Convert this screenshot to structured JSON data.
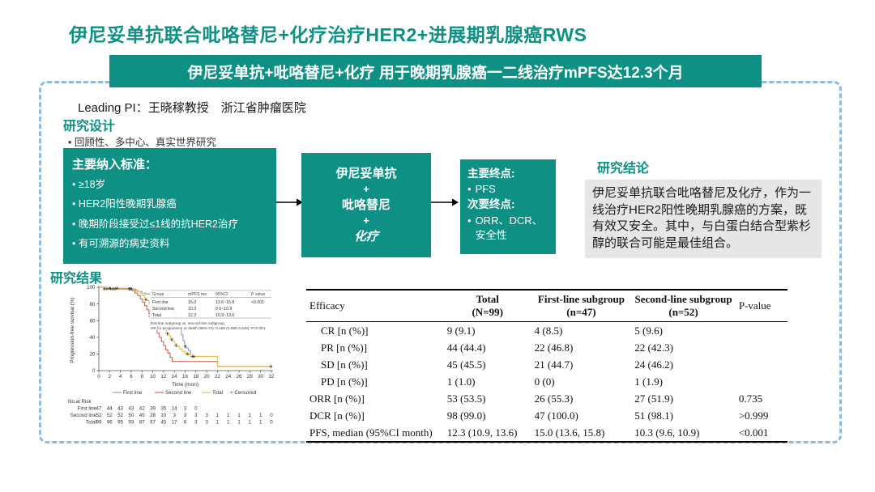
{
  "page": {
    "title": "伊尼妥单抗联合吡咯替尼+化疗治疗HER2+进展期乳腺癌RWS",
    "banner": "伊尼妥单抗+吡咯替尼+化疗 用于晚期乳腺癌一二线治疗mPFS达12.3个月",
    "leading_pi": "Leading PI：王晓稼教授　浙江省肿瘤医院"
  },
  "colors": {
    "teal": "#0e9184",
    "frame_dash_blue": "#8fbbdf",
    "conclusion_gray": "#e7e6e6",
    "km_first_line_blue": "#86a5d8",
    "km_second_line_red": "#d7695b",
    "km_total_yellow": "#e9c25e"
  },
  "design": {
    "heading": "研究设计",
    "bullet": "•   回顾性、多中心、真实世界研究",
    "inclusion_box": {
      "title": "主要纳入标准：",
      "items": [
        "• ≥18岁",
        "• HER2阳性晚期乳腺癌",
        "• 晚期阶段接受过≤1线的抗HER2治疗",
        "• 有可溯源的病史资料"
      ]
    },
    "treatment_box": {
      "lines": [
        "伊尼妥单抗",
        "+",
        "吡咯替尼",
        "+",
        "化疗"
      ]
    },
    "endpoints_box": {
      "primary_label": "主要终点:",
      "primary_item": "PFS",
      "secondary_label": "次要终点:",
      "secondary_item": "ORR、DCR、安全性"
    }
  },
  "conclusion": {
    "heading": "研究结论",
    "text": "伊尼妥单抗联合吡咯替尼及化疗，作为一线治疗HER2阳性晚期乳腺癌的方案，既有效又安全。其中，与白蛋白结合型紫杉醇的联合可能是最佳组合。"
  },
  "results": {
    "heading": "研究结果"
  },
  "chart_data": {
    "type": "line",
    "subtype": "kaplan-meier",
    "xlabel": "Time (mon)",
    "ylabel": "Progression-free survival (%)",
    "xlim": [
      0,
      32
    ],
    "ylim": [
      0,
      100
    ],
    "xticks": [
      0,
      2,
      4,
      6,
      8,
      10,
      12,
      14,
      16,
      18,
      20,
      22,
      24,
      26,
      28,
      30,
      32
    ],
    "yticks": [
      0,
      20,
      40,
      60,
      80,
      100
    ],
    "legend": [
      "First line",
      "Second line",
      "Total",
      "Censored"
    ],
    "series": [
      {
        "name": "First line",
        "color": "#86a5d8",
        "steps": [
          [
            0,
            100
          ],
          [
            1,
            98
          ],
          [
            6.3,
            98
          ],
          [
            6.8,
            96
          ],
          [
            7.3,
            95
          ],
          [
            8,
            93
          ],
          [
            8.6,
            92
          ],
          [
            9.6,
            90
          ],
          [
            10.4,
            88
          ],
          [
            11.2,
            87
          ],
          [
            12,
            85
          ],
          [
            12.6,
            83
          ],
          [
            13,
            80
          ],
          [
            13.4,
            76
          ],
          [
            13.8,
            71
          ],
          [
            14.2,
            65
          ],
          [
            14.6,
            58
          ],
          [
            15,
            50
          ],
          [
            15.3,
            43
          ],
          [
            15.6,
            36
          ],
          [
            15.9,
            30
          ],
          [
            16.2,
            27
          ],
          [
            16.6,
            24
          ],
          [
            17,
            17
          ],
          [
            18.2,
            17
          ]
        ],
        "censors": [
          [
            1.5,
            98
          ],
          [
            2.2,
            98
          ],
          [
            3,
            98
          ],
          [
            5.6,
            98
          ],
          [
            5.9,
            98
          ],
          [
            9.8,
            90
          ],
          [
            10.8,
            88
          ],
          [
            11.5,
            87
          ],
          [
            12.2,
            85
          ],
          [
            13.9,
            71
          ],
          [
            14.4,
            62
          ],
          [
            16,
            29
          ],
          [
            17.6,
            17
          ]
        ]
      },
      {
        "name": "Second line",
        "color": "#d7695b",
        "steps": [
          [
            0,
            100
          ],
          [
            1.2,
            98
          ],
          [
            5.6,
            98
          ],
          [
            6.2,
            96
          ],
          [
            6.7,
            93
          ],
          [
            7.2,
            90
          ],
          [
            7.7,
            86
          ],
          [
            8.1,
            82
          ],
          [
            8.5,
            78
          ],
          [
            8.9,
            73
          ],
          [
            9.3,
            68
          ],
          [
            9.7,
            62
          ],
          [
            10.1,
            56
          ],
          [
            10.4,
            50
          ],
          [
            10.8,
            45
          ],
          [
            11.2,
            40
          ],
          [
            11.6,
            35
          ],
          [
            12,
            30
          ],
          [
            12.4,
            25
          ],
          [
            12.8,
            21
          ],
          [
            13.2,
            16
          ],
          [
            13.6,
            11
          ],
          [
            21.8,
            11
          ],
          [
            22,
            5
          ],
          [
            31.9,
            5
          ]
        ],
        "censors": [
          [
            1,
            98
          ],
          [
            2.6,
            98
          ],
          [
            5.7,
            98
          ],
          [
            9.5,
            65
          ],
          [
            31.9,
            5
          ]
        ]
      },
      {
        "name": "Total",
        "color": "#e9c25e",
        "steps": [
          [
            0,
            100
          ],
          [
            1,
            99
          ],
          [
            6,
            98
          ],
          [
            6.6,
            97
          ],
          [
            7.2,
            95
          ],
          [
            7.7,
            93
          ],
          [
            8.1,
            90
          ],
          [
            8.5,
            87
          ],
          [
            8.9,
            84
          ],
          [
            9.3,
            80
          ],
          [
            9.7,
            76
          ],
          [
            10.1,
            72
          ],
          [
            10.5,
            67
          ],
          [
            10.9,
            63
          ],
          [
            11.3,
            59
          ],
          [
            11.7,
            55
          ],
          [
            12.1,
            50
          ],
          [
            12.5,
            46
          ],
          [
            12.9,
            42
          ],
          [
            13.3,
            39
          ],
          [
            13.7,
            35
          ],
          [
            14.1,
            32
          ],
          [
            14.5,
            29
          ],
          [
            15,
            26
          ],
          [
            15.5,
            23
          ],
          [
            16,
            21
          ],
          [
            16.6,
            19
          ],
          [
            17,
            17
          ],
          [
            21.8,
            17
          ],
          [
            22,
            5
          ],
          [
            31.9,
            5
          ]
        ],
        "censors": [
          [
            2,
            99
          ],
          [
            3.4,
            99
          ],
          [
            6.1,
            98
          ],
          [
            8.7,
            85
          ],
          [
            9.9,
            74
          ],
          [
            10.7,
            65
          ],
          [
            11.5,
            57
          ],
          [
            12.7,
            44
          ],
          [
            13.5,
            37
          ],
          [
            14.3,
            30
          ],
          [
            16.4,
            20
          ],
          [
            17.4,
            17
          ],
          [
            31.9,
            5
          ]
        ]
      }
    ],
    "stats_table": {
      "columns": [
        "Group",
        "mPFS mo",
        "95%CI",
        "P value"
      ],
      "rows": [
        [
          "First line",
          "15.0",
          "13.6~15.8",
          "<0.001"
        ],
        [
          "Second line",
          "10.3",
          "9.6~10.9",
          ""
        ],
        [
          "Total",
          "12.3",
          "10.9~13.6",
          ""
        ]
      ]
    },
    "hr_note_line1": "first-line subgroup vs. second-line subgroup,",
    "hr_note_line2": "HR for progression or death (95% CI): 0.168 (0.086-0.326); P<0.001",
    "risk_table": {
      "label": "No.at Risk",
      "rows": [
        {
          "name": "First line",
          "values": [
            47,
            44,
            43,
            43,
            42,
            39,
            35,
            14,
            3,
            0
          ]
        },
        {
          "name": "Second line",
          "values": [
            52,
            52,
            52,
            50,
            45,
            28,
            10,
            3,
            3,
            3,
            3,
            1,
            1,
            1,
            1,
            1,
            0
          ]
        },
        {
          "name": "Total",
          "values": [
            99,
            96,
            95,
            93,
            87,
            67,
            45,
            17,
            6,
            3,
            3,
            1,
            1,
            1,
            1,
            1,
            0
          ]
        }
      ]
    }
  },
  "results_table": {
    "columns": [
      {
        "label": "Efficacy"
      },
      {
        "label": "Total",
        "sub": "(N=99)"
      },
      {
        "label": "First-line subgroup",
        "sub": "(n=47)"
      },
      {
        "label": "Second-line subgroup",
        "sub": "(n=52)"
      },
      {
        "label": "P-value"
      }
    ],
    "rows": [
      {
        "label": "CR [n (%)]",
        "indent": true,
        "values": [
          "9 (9.1)",
          "4 (8.5)",
          "5 (9.6)",
          ""
        ]
      },
      {
        "label": "PR [n (%)]",
        "indent": true,
        "values": [
          "44 (44.4)",
          "22 (46.8)",
          "22 (42.3)",
          ""
        ]
      },
      {
        "label": "SD [n (%)]",
        "indent": true,
        "values": [
          "45 (45.5)",
          "21 (44.7)",
          "24 (46.2)",
          ""
        ]
      },
      {
        "label": "PD [n (%)]",
        "indent": true,
        "values": [
          "1 (1.0)",
          "0 (0)",
          "1 (1.9)",
          ""
        ]
      },
      {
        "label": "ORR [n (%)]",
        "indent": false,
        "values": [
          "53 (53.5)",
          "26 (55.3)",
          "27 (51.9)",
          "0.735"
        ]
      },
      {
        "label": "DCR [n (%)]",
        "indent": false,
        "values": [
          "98 (99.0)",
          "47 (100.0)",
          "51 (98.1)",
          ">0.999"
        ]
      },
      {
        "label": "PFS, median (95%CI month)",
        "indent": false,
        "values": [
          "12.3 (10.9, 13.6)",
          "15.0 (13.6, 15.8)",
          "10.3 (9.6, 10.9)",
          "<0.001"
        ]
      }
    ]
  }
}
